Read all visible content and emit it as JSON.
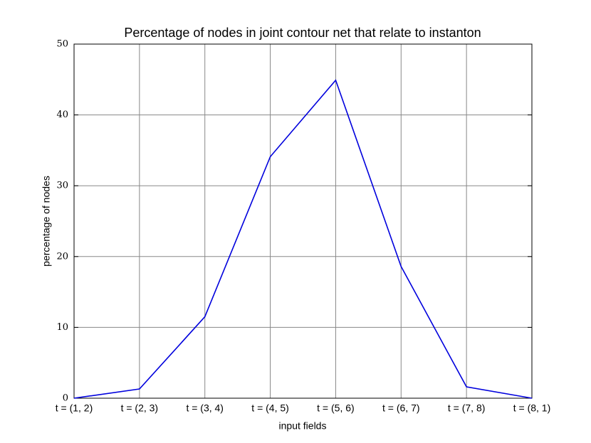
{
  "chart_data": {
    "type": "line",
    "title": "Percentage of nodes in joint contour net that relate to instanton",
    "x_label": "input fields",
    "y_label": "percentage of nodes",
    "categories": [
      "t = (1, 2)",
      "t = (2, 3)",
      "t = (3, 4)",
      "t = (4, 5)",
      "t = (5, 6)",
      "t = (6, 7)",
      "t = (7, 8)",
      "t = (8, 1)"
    ],
    "series": [
      {
        "name": "percentage of nodes",
        "color": "#0000dd",
        "values": [
          0,
          1.3,
          11.5,
          34.1,
          44.9,
          18.6,
          1.6,
          0
        ]
      }
    ],
    "ylim": [
      0,
      50
    ],
    "yticks": [
      0,
      10,
      20,
      30,
      40,
      50
    ],
    "grid": true
  }
}
